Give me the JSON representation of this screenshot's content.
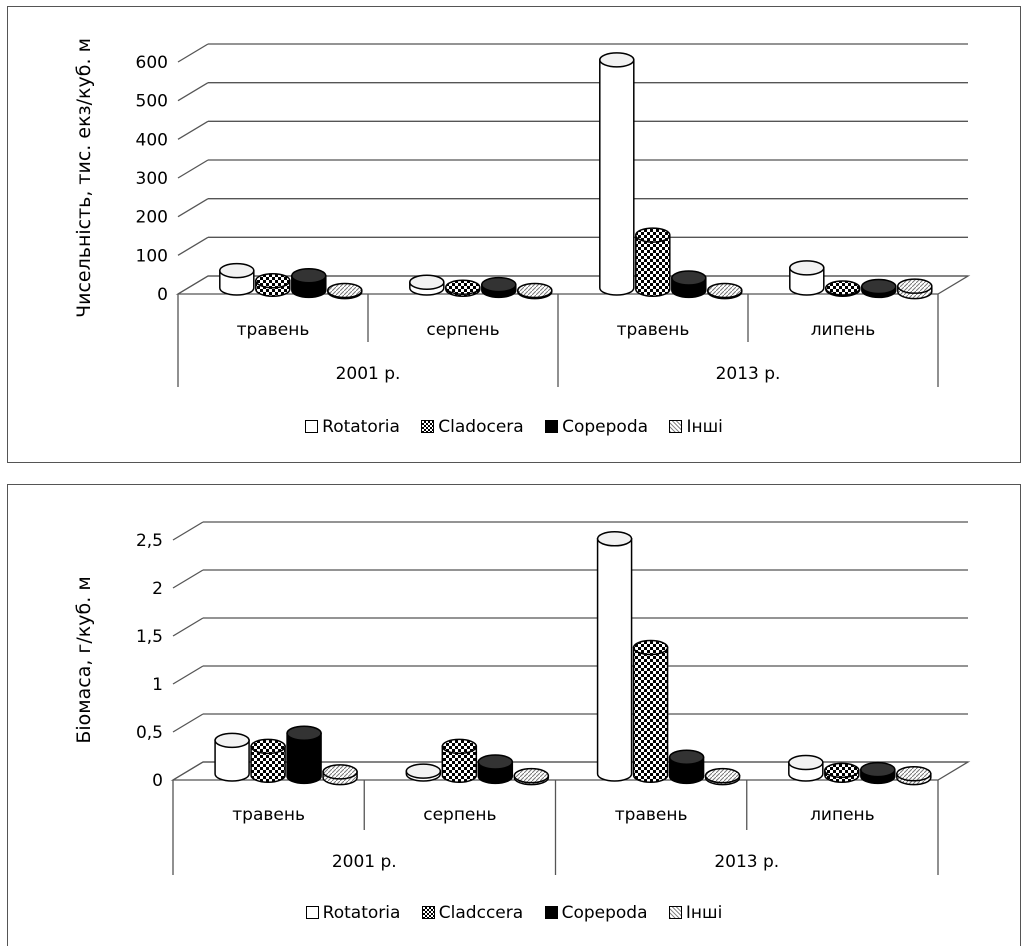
{
  "colors": {
    "rotatoria": "#ffffff",
    "cladocera": "#000000",
    "copepoda": "#000000",
    "other": "#aaaaaa",
    "grid": "#555555"
  },
  "chart_data": [
    {
      "type": "bar",
      "ylabel": "Чисельність, тис. екз/куб. м",
      "ylim": [
        0,
        600
      ],
      "yticks": [
        "0",
        "100",
        "200",
        "300",
        "400",
        "500",
        "600"
      ],
      "categories": [
        "травень",
        "серпень",
        "травень",
        "липень"
      ],
      "groups": [
        {
          "label": "2001 р.",
          "span": [
            0,
            1
          ]
        },
        {
          "label": "2013 р.",
          "span": [
            2,
            3
          ]
        }
      ],
      "series": [
        {
          "name": "Rotatoria",
          "values": [
            45,
            15,
            590,
            52
          ]
        },
        {
          "name": "Cladocera",
          "values": [
            22,
            5,
            140,
            3
          ]
        },
        {
          "name": "Copepoda",
          "values": [
            38,
            15,
            32,
            10
          ]
        },
        {
          "name": "Інші",
          "values": [
            3,
            3,
            3,
            14
          ]
        }
      ],
      "legend_position": "bottom",
      "grid": true
    },
    {
      "type": "bar",
      "ylabel": "Біомаса, г/куб. м",
      "ylim": [
        0,
        2.5
      ],
      "yticks": [
        "0",
        "0,5",
        "1",
        "1,5",
        "2",
        "2,5"
      ],
      "categories": [
        "травень",
        "серпень",
        "травень",
        "липень"
      ],
      "groups": [
        {
          "label": "2001 р.",
          "span": [
            0,
            1
          ]
        },
        {
          "label": "2013 р.",
          "span": [
            2,
            3
          ]
        }
      ],
      "series": [
        {
          "name": "Rotatoria",
          "values": [
            0.35,
            0.03,
            2.45,
            0.12
          ]
        },
        {
          "name": "Cladccera",
          "values": [
            0.3,
            0.3,
            1.33,
            0.05
          ]
        },
        {
          "name": "Copepoda",
          "values": [
            0.45,
            0.15,
            0.2,
            0.07
          ]
        },
        {
          "name": "Інші",
          "values": [
            0.06,
            0.02,
            0.02,
            0.04
          ]
        }
      ],
      "legend_position": "bottom",
      "grid": true
    }
  ]
}
